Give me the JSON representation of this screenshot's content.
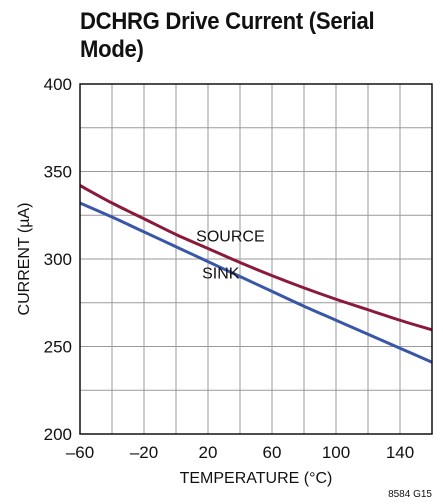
{
  "chart_data": {
    "type": "line",
    "title": "DCHRG Drive Current (Serial Mode)",
    "xlabel": "TEMPERATURE (°C)",
    "ylabel": "CURRENT (µA)",
    "xlim": [
      -60,
      160
    ],
    "ylim": [
      200,
      400
    ],
    "xticks": [
      -60,
      -20,
      20,
      60,
      100,
      140
    ],
    "yticks": [
      200,
      250,
      300,
      350,
      400
    ],
    "xtick_labels": [
      "–60",
      "–20",
      "20",
      "60",
      "100",
      "140"
    ],
    "ytick_labels": [
      "200",
      "250",
      "300",
      "350",
      "400"
    ],
    "grid": true,
    "series": [
      {
        "name": "SOURCE",
        "color": "#8b1a3a",
        "x": [
          -60,
          -40,
          -20,
          0,
          20,
          40,
          60,
          80,
          100,
          120,
          140,
          160
        ],
        "y": [
          342,
          332,
          323,
          314,
          306,
          298,
          290.5,
          283.5,
          277,
          271,
          265,
          259.5
        ]
      },
      {
        "name": "SINK",
        "color": "#3a56a8",
        "x": [
          -60,
          -40,
          -20,
          0,
          20,
          40,
          60,
          80,
          100,
          120,
          140,
          160
        ],
        "y": [
          332,
          324,
          315.5,
          307,
          298.5,
          290,
          281.5,
          273,
          265,
          257,
          249,
          241
        ]
      }
    ],
    "annotations": [
      {
        "text": "SOURCE",
        "x": 34,
        "y": 310
      },
      {
        "text": "SINK",
        "x": 28,
        "y": 289
      }
    ],
    "figure_code": "8584 G15"
  }
}
